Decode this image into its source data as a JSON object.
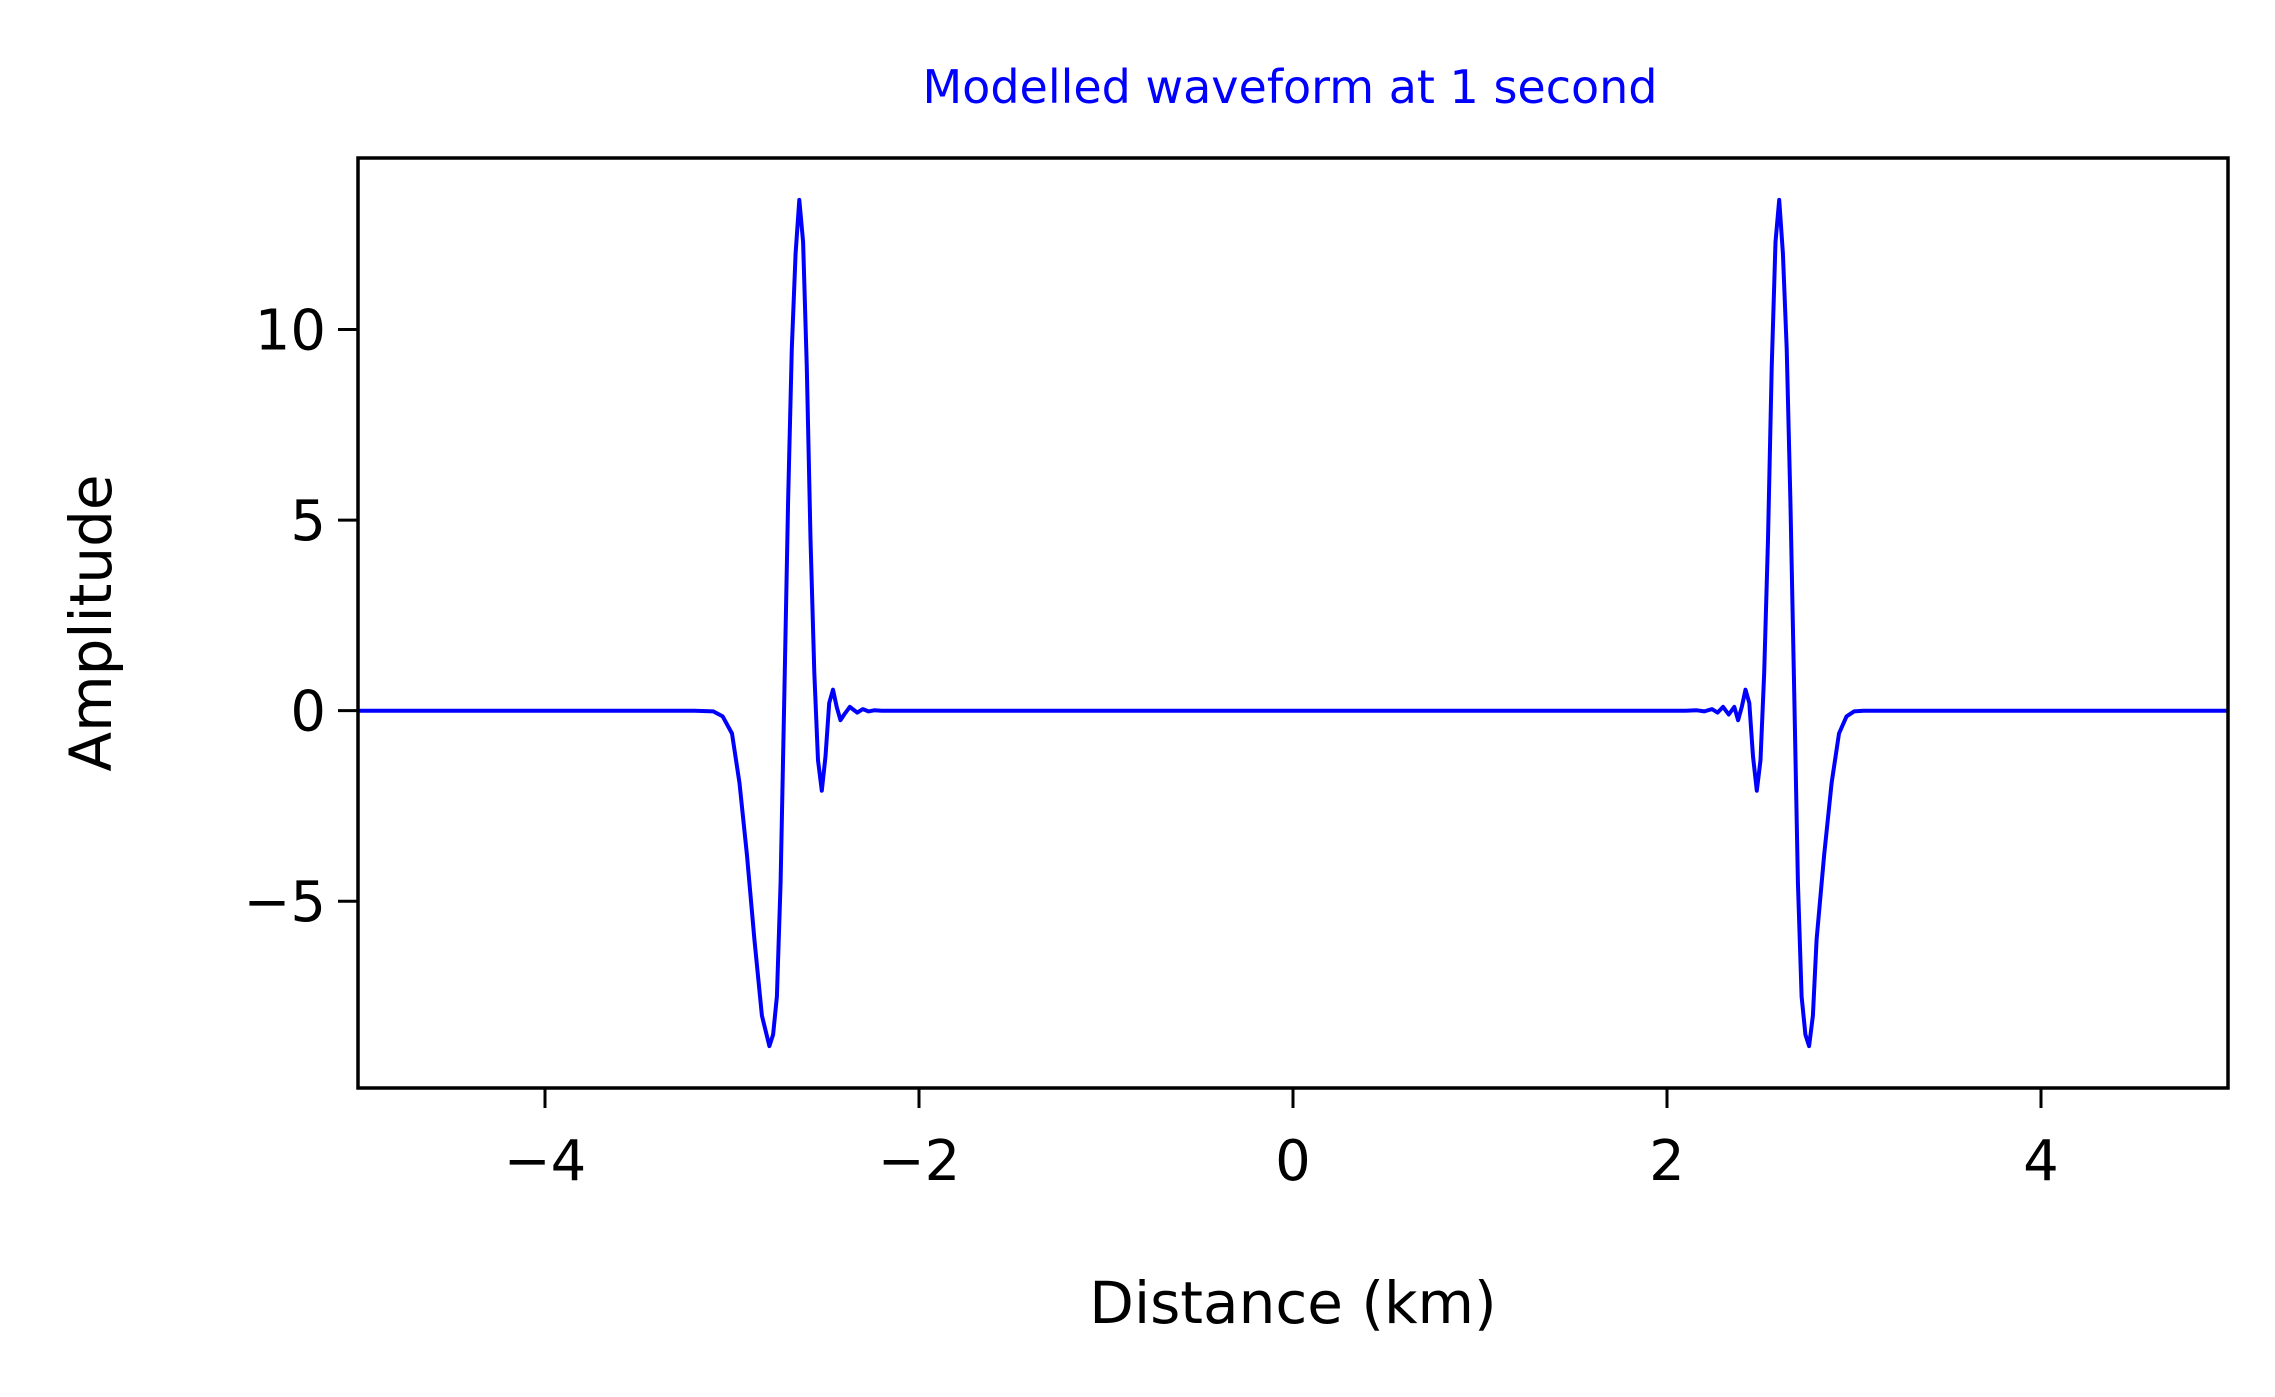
{
  "chart_data": {
    "type": "line",
    "title": "Modelled waveform at 1 second",
    "xlabel": "Distance (km)",
    "ylabel": "Amplitude",
    "xlim": [
      -5,
      5
    ],
    "ylim": [
      -9.9,
      14.5
    ],
    "xticks": [
      -4,
      -2,
      0,
      2,
      4
    ],
    "xtick_labels": [
      "−4",
      "−2",
      "0",
      "2",
      "4"
    ],
    "yticks": [
      -5,
      0,
      5,
      10
    ],
    "ytick_labels": [
      "−5",
      "0",
      "5",
      "10"
    ],
    "grid": false,
    "colors": {
      "line": "#0000ff",
      "title": "#0000ff",
      "axes": "#000000"
    },
    "series": [
      {
        "x": [
          -5.0,
          -3.2,
          -3.1,
          -3.05,
          -3.0,
          -2.96,
          -2.92,
          -2.88,
          -2.84,
          -2.8,
          -2.78,
          -2.76,
          -2.74,
          -2.72,
          -2.7,
          -2.68,
          -2.66,
          -2.64,
          -2.62,
          -2.6,
          -2.58,
          -2.56,
          -2.54,
          -2.52,
          -2.5,
          -2.48,
          -2.46,
          -2.44,
          -2.42,
          -2.4,
          -2.37,
          -2.33,
          -2.3,
          -2.27,
          -2.24,
          -2.2,
          -2.1,
          -1.0,
          0.0,
          1.0,
          2.1,
          2.16,
          2.2,
          2.24,
          2.27,
          2.3,
          2.33,
          2.36,
          2.38,
          2.4,
          2.42,
          2.44,
          2.46,
          2.48,
          2.5,
          2.52,
          2.54,
          2.56,
          2.58,
          2.6,
          2.62,
          2.64,
          2.66,
          2.68,
          2.7,
          2.72,
          2.74,
          2.76,
          2.78,
          2.8,
          2.84,
          2.88,
          2.92,
          2.96,
          3.0,
          3.05,
          3.1,
          3.2,
          5.0
        ],
        "y": [
          0,
          0,
          -0.02,
          -0.15,
          -0.6,
          -1.9,
          -3.8,
          -6.0,
          -8.0,
          -8.8,
          -8.5,
          -7.5,
          -4.5,
          0.5,
          5.5,
          9.5,
          12.0,
          13.4,
          12.3,
          9.0,
          4.5,
          1.0,
          -1.3,
          -2.1,
          -1.2,
          0.2,
          0.55,
          0.1,
          -0.25,
          -0.1,
          0.1,
          -0.05,
          0.04,
          -0.02,
          0.01,
          0,
          0,
          0,
          0,
          0,
          0,
          0.01,
          -0.02,
          0.04,
          -0.05,
          0.1,
          -0.1,
          0.1,
          -0.25,
          0.1,
          0.55,
          0.2,
          -1.2,
          -2.1,
          -1.3,
          1.0,
          4.5,
          9.0,
          12.3,
          13.4,
          12.0,
          9.5,
          5.5,
          0.5,
          -4.5,
          -7.5,
          -8.5,
          -8.8,
          -8.0,
          -6.0,
          -3.8,
          -1.9,
          -0.6,
          -0.15,
          -0.02,
          0,
          0,
          0,
          0
        ]
      }
    ]
  }
}
